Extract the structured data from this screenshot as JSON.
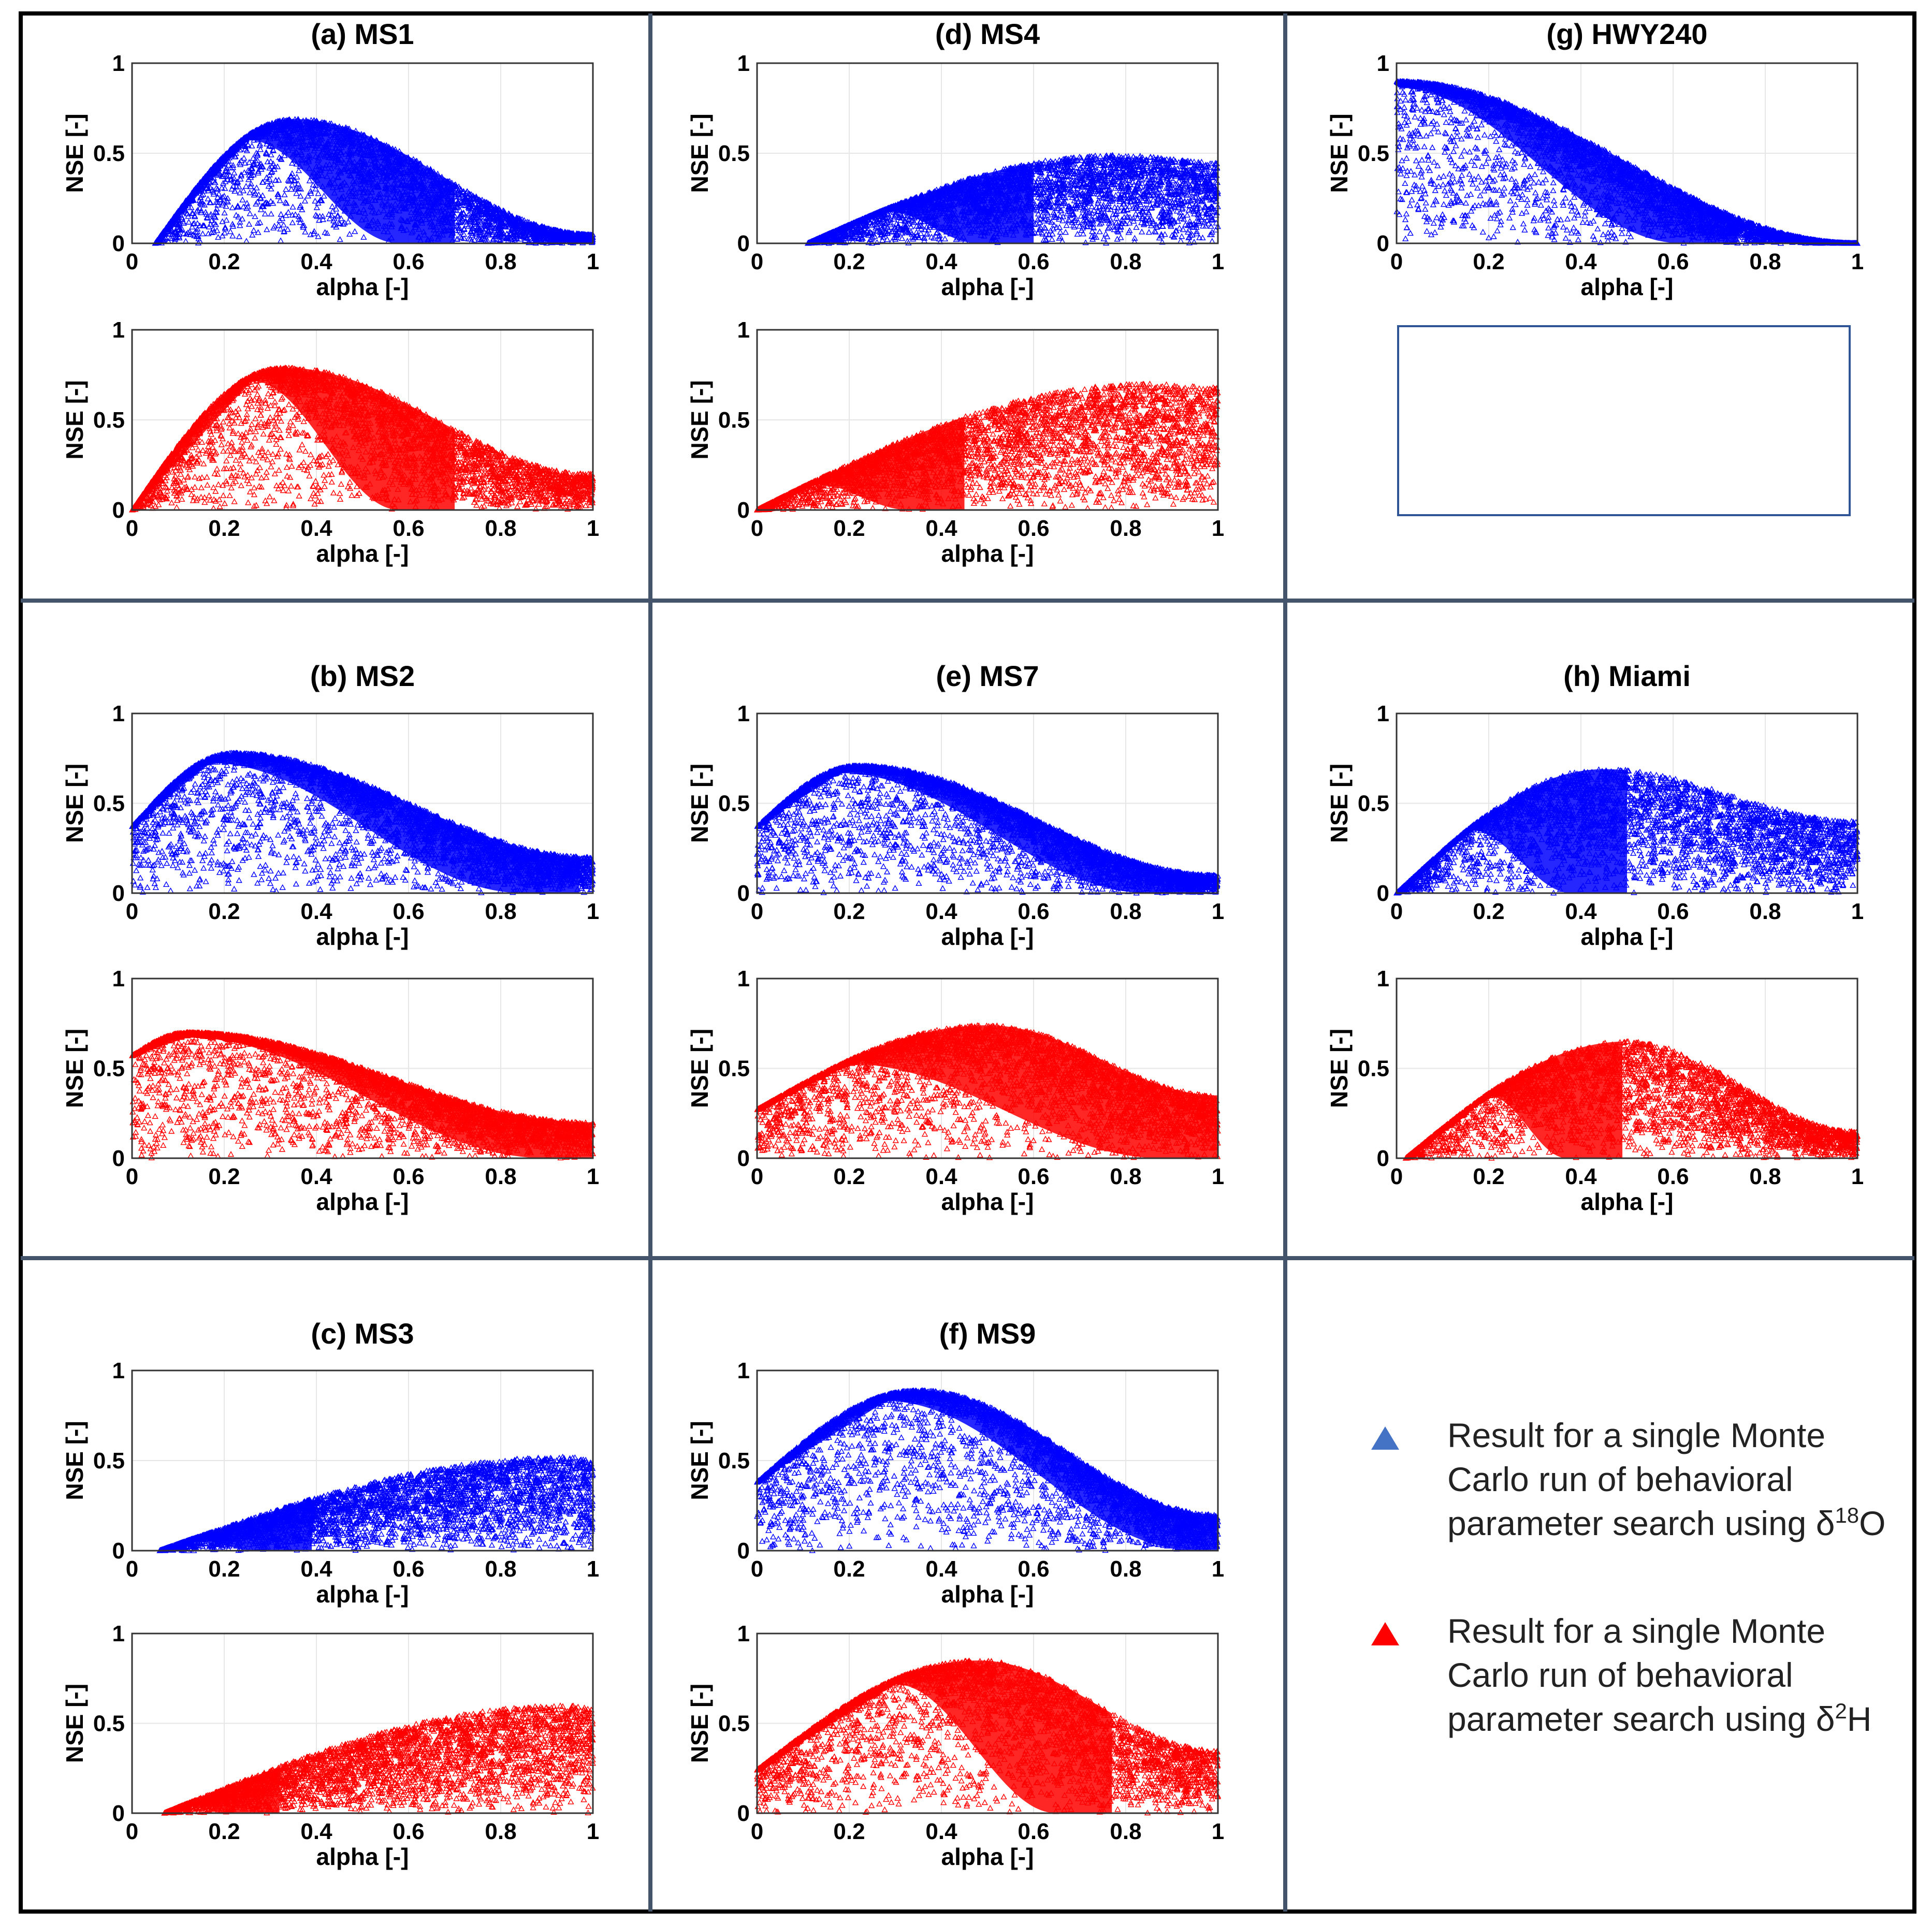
{
  "colors": {
    "d18O": "#0000ff",
    "d2H": "#ff0000",
    "legend_blue": "#4472c4",
    "legend_red": "#ff0000",
    "cell_border": "#44546a"
  },
  "chart_data": {
    "type": "scatter",
    "x_ticks": [
      "0",
      "0.2",
      "0.4",
      "0.6",
      "0.8",
      "1"
    ],
    "y_ticks": [
      "0",
      "0.5",
      "1"
    ],
    "xlim": [
      0,
      1
    ],
    "ylim": [
      0,
      1
    ],
    "panels": [
      {
        "label": "(a)",
        "site": "MS1",
        "d18O": {
          "x_min": 0.05,
          "peak_alpha": 0.35,
          "peak_nse": 0.69,
          "lower_peak_alpha": 0.25,
          "lower_zero_alpha": 0.58,
          "nse_at_1": 0.05
        },
        "d2H": {
          "x_min": 0.0,
          "peak_alpha": 0.33,
          "peak_nse": 0.79,
          "lower_peak_alpha": 0.26,
          "lower_zero_alpha": 0.58,
          "nse_at_1": 0.2
        }
      },
      {
        "label": "(b)",
        "site": "MS2",
        "d18O": {
          "x_min": 0.0,
          "nse_at_0": 0.37,
          "peak_alpha": 0.22,
          "peak_nse": 0.78,
          "lower_peak_alpha": 0.17,
          "lower_zero_alpha": 0.85,
          "nse_at_1": 0.2
        },
        "d2H": {
          "x_min": 0.0,
          "nse_at_0": 0.57,
          "peak_alpha": 0.12,
          "peak_nse": 0.7,
          "lower_peak_alpha": 0.12,
          "lower_zero_alpha": 0.9,
          "nse_at_1": 0.2
        }
      },
      {
        "label": "(c)",
        "site": "MS3",
        "d18O": {
          "x_min": 0.06,
          "peak_alpha": 0.95,
          "peak_nse": 0.52,
          "lower_peak_alpha": 0.13,
          "lower_zero_alpha": 0.27,
          "nse_at_1": 0.5
        },
        "d2H": {
          "x_min": 0.07,
          "peak_alpha": 0.95,
          "peak_nse": 0.6,
          "lower_peak_alpha": 0.12,
          "lower_zero_alpha": 0.2,
          "nse_at_1": 0.58
        }
      },
      {
        "label": "(d)",
        "site": "MS4",
        "d18O": {
          "x_min": 0.11,
          "peak_alpha": 0.78,
          "peak_nse": 0.49,
          "lower_peak_alpha": 0.28,
          "lower_zero_alpha": 0.48,
          "nse_at_1": 0.45
        },
        "d2H": {
          "x_min": 0.0,
          "peak_alpha": 0.85,
          "peak_nse": 0.7,
          "lower_peak_alpha": 0.12,
          "lower_zero_alpha": 0.33,
          "nse_at_1": 0.68
        }
      },
      {
        "label": "(e)",
        "site": "MS7",
        "d18O": {
          "x_min": 0.0,
          "nse_at_0": 0.37,
          "peak_alpha": 0.22,
          "peak_nse": 0.71,
          "lower_peak_alpha": 0.18,
          "lower_zero_alpha": 0.85,
          "nse_at_1": 0.1
        },
        "d2H": {
          "x_min": 0.0,
          "nse_at_0": 0.27,
          "peak_alpha": 0.5,
          "peak_nse": 0.74,
          "lower_peak_alpha": 0.2,
          "lower_zero_alpha": 0.88,
          "nse_at_1": 0.35
        }
      },
      {
        "label": "(f)",
        "site": "MS9",
        "d18O": {
          "x_min": 0.0,
          "nse_at_0": 0.38,
          "peak_alpha": 0.35,
          "peak_nse": 0.89,
          "lower_peak_alpha": 0.28,
          "lower_zero_alpha": 0.95,
          "nse_at_1": 0.2
        },
        "d2H": {
          "x_min": 0.0,
          "nse_at_0": 0.24,
          "peak_alpha": 0.48,
          "peak_nse": 0.85,
          "lower_peak_alpha": 0.3,
          "lower_zero_alpha": 0.65,
          "nse_at_1": 0.35
        }
      },
      {
        "label": "(g)",
        "site": "HWY240",
        "d18O": {
          "x_min": 0.0,
          "nse_at_0": 0.9,
          "peak_alpha": 0.0,
          "peak_nse": 0.9,
          "lower_peak_alpha": 0.0,
          "lower_zero_alpha": 0.62,
          "nse_at_1": 0.0
        }
      },
      {
        "label": "(h)",
        "site": "Miami",
        "d18O": {
          "x_min": 0.0,
          "peak_alpha": 0.45,
          "peak_nse": 0.69,
          "lower_peak_alpha": 0.16,
          "lower_zero_alpha": 0.38,
          "nse_at_1": 0.4
        },
        "d2H": {
          "x_min": 0.02,
          "peak_alpha": 0.5,
          "peak_nse": 0.65,
          "lower_peak_alpha": 0.2,
          "lower_zero_alpha": 0.37,
          "nse_at_1": 0.15
        }
      }
    ],
    "xlabel": "alpha [-]",
    "ylabel": "NSE [-]"
  },
  "legend": {
    "blue_line1": "Result for a single Monte",
    "blue_line2": "Carlo run of behavioral",
    "blue_line3": "parameter search using δ",
    "blue_sup": "18",
    "blue_tail": "O",
    "red_line1": "Result for a single Monte",
    "red_line2": "Carlo run of behavioral",
    "red_line3": "parameter search using δ",
    "red_sup": "2",
    "red_tail": "H"
  }
}
